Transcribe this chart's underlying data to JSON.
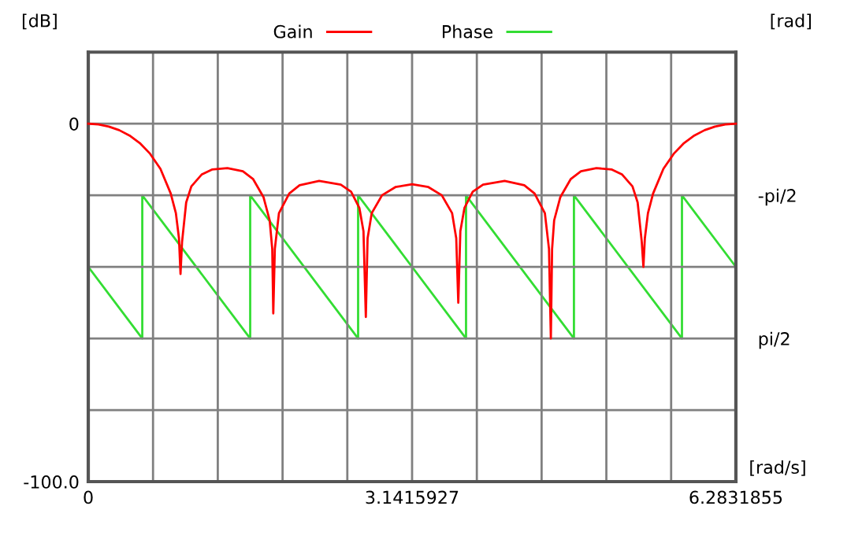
{
  "chart_data": {
    "type": "line",
    "ylabel": "[dB]",
    "y2label": "[rad]",
    "xlabel": "[rad/s]",
    "xlim": [
      0,
      6.2831855
    ],
    "xticks": [
      0,
      {
        "value": 0.6283,
        "label": null
      },
      {
        "value": 1.2566,
        "label": null
      },
      {
        "value": 1.885,
        "label": null
      },
      {
        "value": 2.5133,
        "label": null
      },
      {
        "value": 3.1415927,
        "label": "3.1415927"
      },
      {
        "value": 3.7699,
        "label": null
      },
      {
        "value": 4.3982,
        "label": null
      },
      {
        "value": 5.0265,
        "label": null
      },
      {
        "value": 5.6549,
        "label": null
      },
      {
        "value": 6.2831855,
        "label": "6.2831855"
      }
    ],
    "ylim": [
      -100,
      20
    ],
    "yticks": [
      {
        "value": -100,
        "label": "-100.0"
      },
      {
        "value": -80,
        "label": null
      },
      {
        "value": -60,
        "label": null
      },
      {
        "value": -40,
        "label": null
      },
      {
        "value": -20,
        "label": null
      },
      0,
      {
        "value": 20,
        "label": null
      }
    ],
    "y2lim": [
      4.7124,
      -4.7124
    ],
    "y2ticks": [
      {
        "value": -1.5708,
        "label": "-pi/2"
      },
      {
        "value": 1.5708,
        "label": "pi/2"
      }
    ],
    "grid": true,
    "legend": "top",
    "series": [
      {
        "name": "Gain",
        "color": "#ff0000",
        "x": [
          0,
          0.1,
          0.2,
          0.3,
          0.4,
          0.5,
          0.6,
          0.7,
          0.8,
          0.85,
          0.88,
          0.895,
          0.91,
          0.95,
          1.0,
          1.1,
          1.2,
          1.35,
          1.5,
          1.6,
          1.7,
          1.76,
          1.785,
          1.795,
          1.81,
          1.85,
          1.95,
          2.05,
          2.24,
          2.45,
          2.55,
          2.63,
          2.67,
          2.693,
          2.71,
          2.75,
          2.85,
          2.98,
          3.1416,
          3.3,
          3.43,
          3.53,
          3.57,
          3.59,
          3.61,
          3.65,
          3.73,
          3.83,
          4.04,
          4.23,
          4.33,
          4.43,
          4.47,
          4.488,
          4.5,
          4.52,
          4.58,
          4.68,
          4.78,
          4.93,
          5.08,
          5.18,
          5.28,
          5.33,
          5.37,
          5.386,
          5.4,
          5.43,
          5.48,
          5.58,
          5.68,
          5.78,
          5.88,
          5.98,
          6.08,
          6.18,
          6.2831855
        ],
        "values": [
          0,
          -0.2,
          -0.8,
          -1.8,
          -3.3,
          -5.4,
          -8.4,
          -12.6,
          -19.5,
          -25,
          -32,
          -42,
          -33,
          -22,
          -17.5,
          -14.2,
          -12.8,
          -12.4,
          -13.3,
          -15.5,
          -20.5,
          -27,
          -35,
          -53,
          -35,
          -25,
          -19.5,
          -17.2,
          -16,
          -17,
          -19,
          -23.5,
          -30,
          -54,
          -32,
          -25,
          -20,
          -17.7,
          -16.9,
          -17.7,
          -20,
          -25,
          -32,
          -50,
          -30,
          -23.5,
          -19,
          -17,
          -16,
          -17.2,
          -19.5,
          -25,
          -35,
          -60,
          -35,
          -27,
          -20.5,
          -15.5,
          -13.3,
          -12.4,
          -12.8,
          -14.2,
          -17.5,
          -22,
          -33,
          -40,
          -32,
          -25,
          -19.5,
          -12.6,
          -8.4,
          -5.4,
          -3.3,
          -1.8,
          -0.8,
          -0.2,
          0
        ]
      },
      {
        "name": "Phase",
        "color": "#33dd33",
        "axis": "y2",
        "x": [
          0,
          0.524,
          0.524,
          1.571,
          1.571,
          2.618,
          2.618,
          3.665,
          3.665,
          4.712,
          4.712,
          5.76,
          5.76,
          6.2831855
        ],
        "values": [
          0,
          1.57,
          -1.57,
          1.57,
          -1.57,
          1.57,
          -1.57,
          1.57,
          -1.57,
          1.57,
          -1.57,
          1.57,
          -1.57,
          0
        ]
      }
    ]
  }
}
